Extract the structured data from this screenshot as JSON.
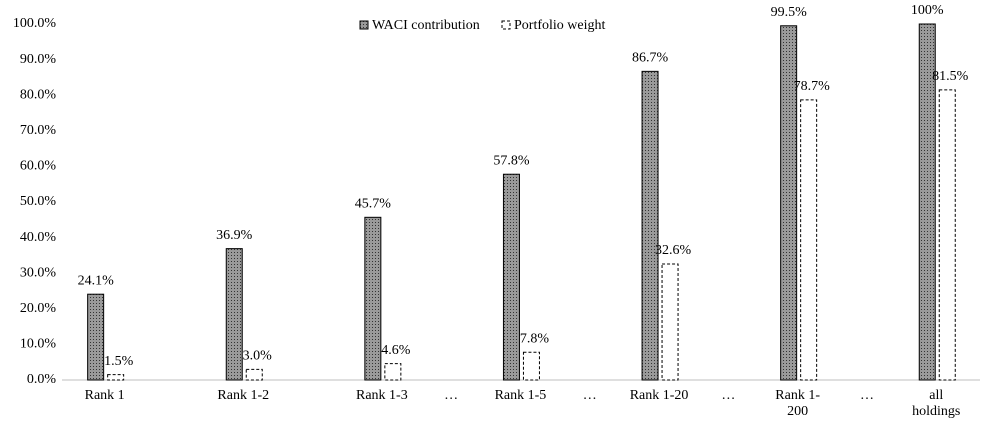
{
  "chart_data": {
    "type": "bar",
    "categories": [
      "Rank 1",
      null,
      "Rank 1-2",
      null,
      "Rank 1-3",
      "…",
      "Rank 1-5",
      "…",
      "Rank 1-20",
      "…",
      "Rank 1-200",
      "…",
      "all holdings"
    ],
    "series": [
      {
        "name": "WACI contribution",
        "color": "#7f7f7f",
        "values": [
          24.1,
          null,
          36.9,
          null,
          45.7,
          null,
          57.8,
          null,
          86.7,
          null,
          99.5,
          null,
          100
        ],
        "value_labels": [
          "24.1%",
          null,
          "36.9%",
          null,
          "45.7%",
          null,
          "57.8%",
          null,
          "86.7%",
          null,
          "99.5%",
          null,
          "100%"
        ]
      },
      {
        "name": "Portfolio weight",
        "color": "#ffffff",
        "values": [
          1.5,
          null,
          3.0,
          null,
          4.6,
          null,
          7.8,
          null,
          32.6,
          null,
          78.7,
          null,
          81.5
        ],
        "value_labels": [
          "1.5%",
          null,
          "3.0%",
          null,
          "4.6%",
          null,
          "7.8%",
          null,
          "32.6%",
          null,
          "78.7%",
          null,
          "81.5%"
        ]
      }
    ],
    "ylim": [
      0,
      100
    ],
    "yticks": [
      {
        "value": 0,
        "label": "0.0%"
      },
      {
        "value": 10,
        "label": "10.0%"
      },
      {
        "value": 20,
        "label": "20.0%"
      },
      {
        "value": 30,
        "label": "30.0%"
      },
      {
        "value": 40,
        "label": "40.0%"
      },
      {
        "value": 50,
        "label": "50.0%"
      },
      {
        "value": 60,
        "label": "60.0%"
      },
      {
        "value": 70,
        "label": "70.0%"
      },
      {
        "value": 80,
        "label": "80.0%"
      },
      {
        "value": 90,
        "label": "90.0%"
      },
      {
        "value": 100,
        "label": "100.0%"
      }
    ],
    "legend": "top"
  }
}
